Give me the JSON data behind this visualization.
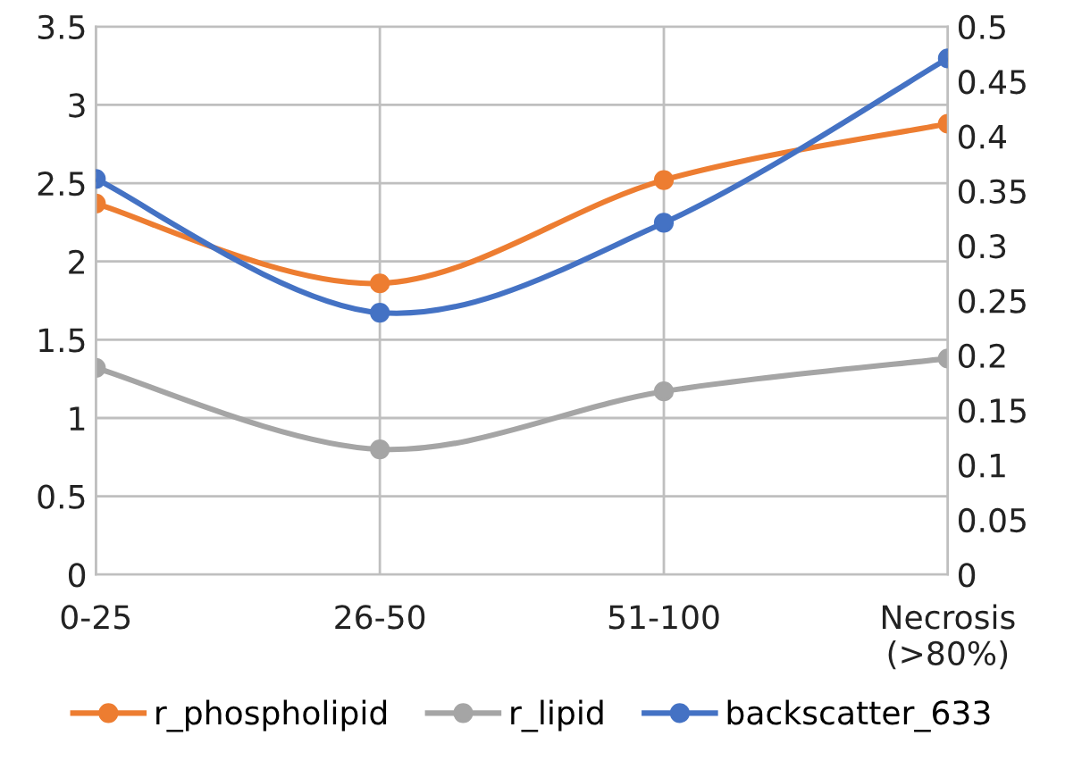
{
  "chart_data": {
    "type": "line",
    "categories": [
      "0-25",
      "26-50",
      "51-100",
      "Necrosis\n(>80%)"
    ],
    "series": [
      {
        "name": "r_phospholipid",
        "color": "#ed7d31",
        "values": [
          2.37,
          1.86,
          2.52,
          2.88
        ]
      },
      {
        "name": "r_lipid",
        "color": "#a5a5a5",
        "values": [
          1.32,
          0.8,
          1.17,
          1.38
        ]
      },
      {
        "name": "backscatter_633",
        "color": "#4472c4",
        "values": [
          0.361,
          0.239,
          0.321,
          0.471
        ],
        "axis": "y2"
      }
    ],
    "ylim": [
      0,
      3.5
    ],
    "yticks": [
      0,
      0.5,
      1,
      1.5,
      2,
      2.5,
      3,
      3.5
    ],
    "y2lim": [
      0,
      0.5
    ],
    "y2ticks": [
      0,
      0.05,
      0.1,
      0.15,
      0.2,
      0.25,
      0.3,
      0.35,
      0.4,
      0.45,
      0.5
    ],
    "grid": true,
    "legend": "bottom",
    "marker": "circle",
    "line_style": "solid"
  }
}
